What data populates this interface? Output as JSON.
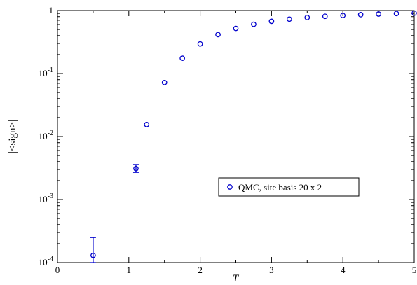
{
  "chart_data": {
    "type": "scatter",
    "title": "",
    "xlabel": "T",
    "ylabel": "|<sign>|",
    "xlim": [
      0,
      5
    ],
    "ylim": [
      0.0001,
      1
    ],
    "yscale": "log",
    "grid": false,
    "legend_placement": "center-right",
    "x_ticks": [
      {
        "value": 0,
        "label": "0"
      },
      {
        "value": 1,
        "label": "1"
      },
      {
        "value": 2,
        "label": "2"
      },
      {
        "value": 3,
        "label": "3"
      },
      {
        "value": 4,
        "label": "4"
      },
      {
        "value": 5,
        "label": "5"
      }
    ],
    "y_ticks": [
      {
        "value": 0.0001,
        "base": "10",
        "exp": "-4"
      },
      {
        "value": 0.001,
        "base": "10",
        "exp": "-3"
      },
      {
        "value": 0.01,
        "base": "10",
        "exp": "-2"
      },
      {
        "value": 0.1,
        "base": "10",
        "exp": "-1"
      },
      {
        "value": 1,
        "base": "1",
        "exp": ""
      }
    ],
    "series": [
      {
        "name": "QMC, site basis 20 x 2",
        "color": "#0000cc",
        "marker": "open-circle",
        "points": [
          {
            "x": 0.5,
            "y": 0.00013,
            "err_low": 0.0001,
            "err_high": 0.00025
          },
          {
            "x": 1.1,
            "y": 0.0031,
            "err_low": 0.0027,
            "err_high": 0.0036
          },
          {
            "x": 1.25,
            "y": 0.0155
          },
          {
            "x": 1.5,
            "y": 0.072
          },
          {
            "x": 1.75,
            "y": 0.175
          },
          {
            "x": 2.0,
            "y": 0.295
          },
          {
            "x": 2.25,
            "y": 0.415
          },
          {
            "x": 2.5,
            "y": 0.52
          },
          {
            "x": 2.75,
            "y": 0.605
          },
          {
            "x": 3.0,
            "y": 0.675
          },
          {
            "x": 3.25,
            "y": 0.73
          },
          {
            "x": 3.5,
            "y": 0.775
          },
          {
            "x": 3.75,
            "y": 0.81
          },
          {
            "x": 4.0,
            "y": 0.835
          },
          {
            "x": 4.25,
            "y": 0.86
          },
          {
            "x": 4.5,
            "y": 0.88
          },
          {
            "x": 4.75,
            "y": 0.895
          },
          {
            "x": 5.0,
            "y": 0.91
          }
        ]
      }
    ]
  }
}
